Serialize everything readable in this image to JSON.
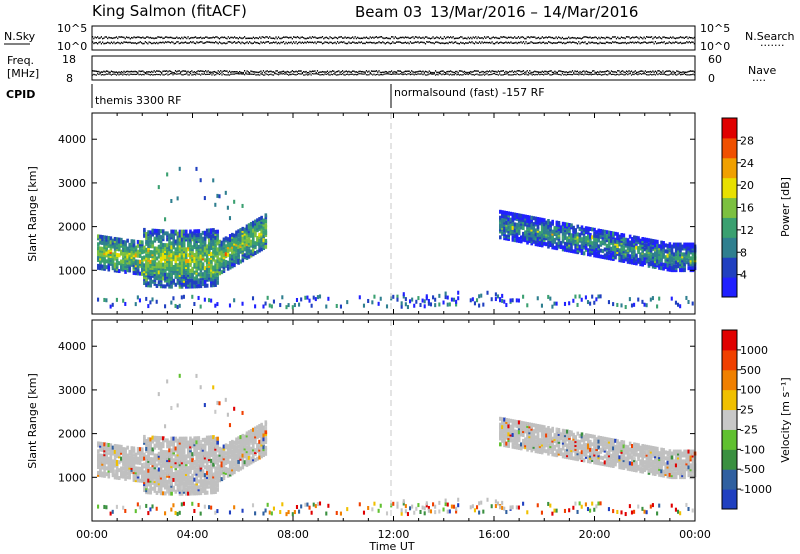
{
  "header": {
    "station": "King Salmon (fitACF)",
    "beam": "Beam 03",
    "dates": "13/Mar/2016 – 14/Mar/2016"
  },
  "params": {
    "nsky_label": "N.Sky",
    "nsky_ticks": [
      "10^5",
      "10^0"
    ],
    "nsearch_label": "N.Search",
    "nsearch_ticks": [
      "10^5",
      "10^0"
    ],
    "freq_label_line1": "Freq.",
    "freq_label_line2": "[MHz]",
    "freq_ticks": [
      "18",
      "8"
    ],
    "nave_label": "Nave",
    "nave_ticks": [
      "60",
      "0"
    ],
    "cpid_label": "CPID",
    "cpid_segments": [
      {
        "text": "themis 3300 RF",
        "start_hour": 0
      },
      {
        "text": "normalsound (fast) -157 RF",
        "start_hour": 12
      }
    ]
  },
  "chart_data": [
    {
      "type": "heatmap",
      "name": "power-panel",
      "ylabel": "Slant Range [km]",
      "xlabel": "",
      "x_range_hours": [
        0,
        24
      ],
      "ylim": [
        0,
        4600
      ],
      "y_ticks": [
        "1000",
        "2000",
        "3000",
        "4000"
      ],
      "colorbar": {
        "label": "Power [dB]",
        "ticks": [
          "4",
          "8",
          "12",
          "16",
          "20",
          "24",
          "28"
        ],
        "colors": [
          "#2020ff",
          "#2040c0",
          "#2f7f8f",
          "#3aa070",
          "#7cc040",
          "#e8e000",
          "#f0a000",
          "#f05000",
          "#e00000"
        ]
      }
    },
    {
      "type": "heatmap",
      "name": "velocity-panel",
      "ylabel": "Slant Range [km]",
      "xlabel": "Time UT",
      "x_range_hours": [
        0,
        24
      ],
      "x_ticks": [
        "00:00",
        "04:00",
        "08:00",
        "12:00",
        "16:00",
        "20:00",
        "00:00"
      ],
      "ylim": [
        0,
        4600
      ],
      "y_ticks": [
        "1000",
        "2000",
        "3000",
        "4000"
      ],
      "colorbar": {
        "label": "Velocity [m s⁻¹]",
        "ticks": [
          "1000",
          "500",
          "100",
          "25",
          "-25",
          "-100",
          "-500",
          "-1000"
        ],
        "colors": [
          "#2040c0",
          "#3060a0",
          "#3a9040",
          "#60c030",
          "#c8c8c8",
          "#f0c000",
          "#f08000",
          "#f04000",
          "#e00000"
        ]
      }
    }
  ],
  "colors": {
    "ground_scatter": "#c0c0c0",
    "separator_line": "#c8c8c8"
  }
}
